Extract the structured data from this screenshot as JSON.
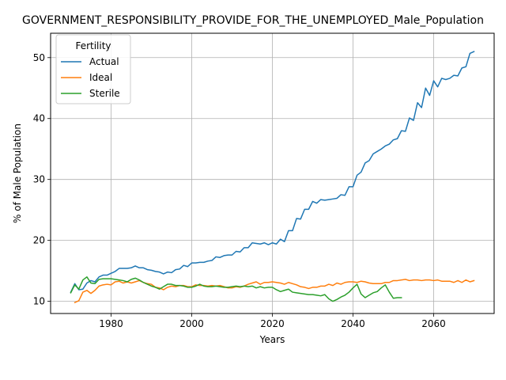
{
  "chart_data": {
    "type": "line",
    "title": "GOVERNMENT_RESPONSIBILITY_PROVIDE_FOR_THE_UNEMPLOYED_Male_Population",
    "xlabel": "Years",
    "ylabel": "% of Male Population",
    "xlim": [
      1965,
      2075
    ],
    "ylim": [
      8,
      54
    ],
    "xticks": [
      1980,
      2000,
      2020,
      2040,
      2060
    ],
    "yticks": [
      10,
      20,
      30,
      40,
      50
    ],
    "grid": true,
    "legend": {
      "title": "Fertility",
      "placement": "upper-left"
    },
    "series": [
      {
        "name": "Actual",
        "color": "#1f77b4",
        "x": [
          1970,
          1971,
          1972,
          1973,
          1974,
          1975,
          1976,
          1977,
          1978,
          1979,
          1980,
          1981,
          1982,
          1983,
          1984,
          1985,
          1986,
          1987,
          1988,
          1989,
          1990,
          1991,
          1992,
          1993,
          1994,
          1995,
          1996,
          1997,
          1998,
          1999,
          2000,
          2001,
          2002,
          2003,
          2004,
          2005,
          2006,
          2007,
          2008,
          2009,
          2010,
          2011,
          2012,
          2013,
          2014,
          2015,
          2016,
          2017,
          2018,
          2019,
          2020,
          2021,
          2022,
          2023,
          2024,
          2025,
          2026,
          2027,
          2028,
          2029,
          2030,
          2031,
          2032,
          2033,
          2034,
          2035,
          2036,
          2037,
          2038,
          2039,
          2040,
          2041,
          2042,
          2043,
          2044,
          2045,
          2046,
          2047,
          2048,
          2049,
          2050,
          2051,
          2052,
          2053,
          2054,
          2055,
          2056,
          2057,
          2058,
          2059,
          2060,
          2061,
          2062,
          2063,
          2064,
          2065,
          2066,
          2067,
          2068,
          2069,
          2070
        ],
        "y": [
          11.5,
          12.9,
          11.9,
          12.0,
          13.0,
          13.4,
          13.2,
          14.0,
          14.3,
          14.3,
          14.6,
          14.9,
          15.4,
          15.4,
          15.4,
          15.5,
          15.8,
          15.5,
          15.5,
          15.2,
          15.1,
          14.9,
          14.8,
          14.5,
          14.8,
          14.7,
          15.2,
          15.3,
          15.9,
          15.7,
          16.3,
          16.3,
          16.4,
          16.4,
          16.6,
          16.7,
          17.3,
          17.2,
          17.5,
          17.6,
          17.6,
          18.2,
          18.1,
          18.8,
          18.8,
          19.6,
          19.5,
          19.4,
          19.6,
          19.3,
          19.6,
          19.4,
          20.2,
          19.8,
          21.6,
          21.6,
          23.6,
          23.5,
          25.1,
          25.1,
          26.4,
          26.1,
          26.7,
          26.6,
          26.7,
          26.8,
          26.9,
          27.5,
          27.4,
          28.8,
          28.8,
          30.7,
          31.2,
          32.7,
          33.1,
          34.2,
          34.6,
          35.0,
          35.5,
          35.8,
          36.5,
          36.7,
          38.0,
          37.9,
          40.1,
          39.7,
          42.6,
          41.8,
          45.0,
          43.8,
          46.2,
          45.2,
          46.6,
          46.4,
          46.6,
          47.1,
          47.0,
          48.3,
          48.5,
          50.7,
          51.0
        ]
      },
      {
        "name": "Ideal",
        "color": "#ff7f0e",
        "x": [
          1971,
          1972,
          1973,
          1974,
          1975,
          1976,
          1977,
          1978,
          1979,
          1980,
          1981,
          1982,
          1983,
          1984,
          1985,
          1986,
          1987,
          1988,
          1989,
          1990,
          1991,
          1992,
          1993,
          1994,
          1995,
          1996,
          1997,
          1998,
          1999,
          2000,
          2001,
          2002,
          2003,
          2004,
          2005,
          2006,
          2007,
          2008,
          2009,
          2010,
          2011,
          2012,
          2013,
          2014,
          2015,
          2016,
          2017,
          2018,
          2019,
          2020,
          2021,
          2022,
          2023,
          2024,
          2025,
          2026,
          2027,
          2028,
          2029,
          2030,
          2031,
          2032,
          2033,
          2034,
          2035,
          2036,
          2037,
          2038,
          2039,
          2040,
          2041,
          2042,
          2043,
          2044,
          2045,
          2046,
          2047,
          2048,
          2049,
          2050,
          2051,
          2052,
          2053,
          2054,
          2055,
          2056,
          2057,
          2058,
          2059,
          2060,
          2061,
          2062,
          2063,
          2064,
          2065,
          2066,
          2067,
          2068,
          2069,
          2070
        ],
        "y": [
          9.8,
          10.1,
          11.5,
          11.8,
          11.3,
          11.8,
          12.5,
          12.7,
          12.8,
          12.7,
          13.2,
          13.3,
          13.0,
          13.2,
          13.0,
          13.2,
          13.4,
          13.1,
          12.9,
          12.8,
          12.3,
          12.2,
          11.9,
          12.3,
          12.5,
          12.4,
          12.6,
          12.6,
          12.4,
          12.4,
          12.7,
          12.6,
          12.6,
          12.5,
          12.6,
          12.5,
          12.6,
          12.4,
          12.2,
          12.2,
          12.4,
          12.3,
          12.5,
          12.8,
          13.0,
          13.2,
          12.8,
          13.1,
          13.1,
          13.2,
          13.1,
          13.0,
          12.8,
          13.1,
          12.9,
          12.7,
          12.4,
          12.3,
          12.1,
          12.3,
          12.3,
          12.5,
          12.5,
          12.8,
          12.6,
          13.0,
          12.8,
          13.1,
          13.2,
          13.2,
          13.1,
          13.3,
          13.2,
          13.0,
          12.9,
          12.9,
          12.9,
          13.1,
          13.1,
          13.4,
          13.4,
          13.5,
          13.6,
          13.4,
          13.5,
          13.5,
          13.4,
          13.5,
          13.5,
          13.4,
          13.5,
          13.3,
          13.3,
          13.3,
          13.1,
          13.4,
          13.1,
          13.5,
          13.2,
          13.4
        ]
      },
      {
        "name": "Sterile",
        "color": "#2ca02c",
        "x": [
          1970,
          1971,
          1972,
          1973,
          1974,
          1975,
          1976,
          1977,
          1978,
          1979,
          1980,
          1981,
          1982,
          1983,
          1984,
          1985,
          1986,
          1987,
          1988,
          1989,
          1990,
          1991,
          1992,
          1993,
          1994,
          1995,
          1996,
          1997,
          1998,
          1999,
          2000,
          2001,
          2002,
          2003,
          2004,
          2005,
          2006,
          2007,
          2008,
          2009,
          2010,
          2011,
          2012,
          2013,
          2014,
          2015,
          2016,
          2017,
          2018,
          2019,
          2020,
          2021,
          2022,
          2023,
          2024,
          2025,
          2026,
          2027,
          2028,
          2029,
          2030,
          2031,
          2032,
          2033,
          2034,
          2035,
          2036,
          2037,
          2038,
          2039,
          2040,
          2041,
          2042,
          2043,
          2044,
          2045,
          2046,
          2047,
          2048,
          2049,
          2050,
          2051,
          2052
        ],
        "y": [
          11.4,
          12.7,
          12.0,
          13.5,
          14.0,
          13.0,
          12.9,
          13.6,
          13.7,
          13.7,
          13.7,
          13.6,
          13.5,
          13.4,
          13.2,
          13.6,
          13.8,
          13.5,
          13.1,
          12.8,
          12.5,
          12.3,
          12.0,
          12.4,
          12.8,
          12.8,
          12.6,
          12.6,
          12.5,
          12.3,
          12.3,
          12.5,
          12.8,
          12.5,
          12.4,
          12.4,
          12.5,
          12.4,
          12.3,
          12.3,
          12.4,
          12.5,
          12.4,
          12.5,
          12.4,
          12.5,
          12.2,
          12.4,
          12.2,
          12.3,
          12.3,
          11.9,
          11.6,
          11.8,
          12.0,
          11.5,
          11.4,
          11.3,
          11.2,
          11.1,
          11.1,
          11.0,
          10.9,
          11.1,
          10.4,
          10.0,
          10.3,
          10.7,
          11.0,
          11.5,
          12.2,
          12.8,
          11.2,
          10.6,
          11.0,
          11.4,
          11.6,
          12.2,
          12.7,
          11.5,
          10.5,
          10.6,
          10.6
        ]
      }
    ]
  }
}
